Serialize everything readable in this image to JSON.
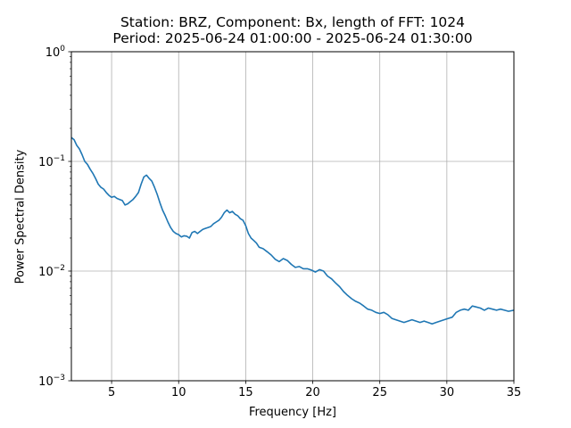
{
  "title_line1": "Station: BRZ, Component: Bx, length of FFT: 1024",
  "title_line2": "Period: 2025-06-24 01:00:00 - 2025-06-24 01:30:00",
  "chart_data": {
    "type": "line",
    "title": "Station: BRZ, Component: Bx, length of FFT: 1024\nPeriod: 2025-06-24 01:00:00 - 2025-06-24 01:30:00",
    "xlabel": "Frequency [Hz]",
    "ylabel": "Power Spectral Density",
    "xlim": [
      2,
      35
    ],
    "ylim": [
      0.001,
      1
    ],
    "yscale": "log",
    "grid": true,
    "line_color": "#1f77b4",
    "xticks": [
      5,
      10,
      15,
      20,
      25,
      30,
      35
    ],
    "yticks": [
      {
        "value": 0.001,
        "base": "10",
        "exp": "−3"
      },
      {
        "value": 0.01,
        "base": "10",
        "exp": "−2"
      },
      {
        "value": 0.1,
        "base": "10",
        "exp": "−1"
      },
      {
        "value": 1,
        "base": "10",
        "exp": "0"
      }
    ],
    "series": [
      {
        "x": [
          2.0,
          2.2,
          2.4,
          2.6,
          2.8,
          3.0,
          3.2,
          3.4,
          3.6,
          3.8,
          4.0,
          4.2,
          4.4,
          4.6,
          4.8,
          5.0,
          5.2,
          5.4,
          5.6,
          5.8,
          6.0,
          6.2,
          6.4,
          6.6,
          6.8,
          7.0,
          7.2,
          7.4,
          7.6,
          7.8,
          8.0,
          8.2,
          8.4,
          8.6,
          8.8,
          9.0,
          9.2,
          9.4,
          9.6,
          9.8,
          10.0,
          10.2,
          10.4,
          10.6,
          10.8,
          11.0,
          11.2,
          11.4,
          11.6,
          11.8,
          12.0,
          12.2,
          12.4,
          12.6,
          12.8,
          13.0,
          13.2,
          13.4,
          13.6,
          13.8,
          14.0,
          14.2,
          14.4,
          14.6,
          14.8,
          15.0,
          15.2,
          15.4,
          15.6,
          15.8,
          16.0,
          16.3,
          16.6,
          16.9,
          17.2,
          17.5,
          17.8,
          18.1,
          18.4,
          18.7,
          19.0,
          19.3,
          19.6,
          19.9,
          20.2,
          20.5,
          20.8,
          21.1,
          21.4,
          21.7,
          22.0,
          22.3,
          22.6,
          22.9,
          23.2,
          23.5,
          23.8,
          24.1,
          24.4,
          24.7,
          25.0,
          25.3,
          25.6,
          25.9,
          26.2,
          26.5,
          26.8,
          27.1,
          27.4,
          27.7,
          28.0,
          28.3,
          28.6,
          28.9,
          29.2,
          29.5,
          29.8,
          30.1,
          30.4,
          30.7,
          31.0,
          31.3,
          31.6,
          31.9,
          32.2,
          32.5,
          32.8,
          33.1,
          33.4,
          33.7,
          34.0,
          34.3,
          34.6,
          35.0
        ],
        "y": [
          0.165,
          0.158,
          0.14,
          0.13,
          0.115,
          0.1,
          0.094,
          0.085,
          0.078,
          0.07,
          0.062,
          0.058,
          0.056,
          0.052,
          0.049,
          0.047,
          0.048,
          0.046,
          0.045,
          0.044,
          0.04,
          0.041,
          0.043,
          0.045,
          0.048,
          0.052,
          0.062,
          0.072,
          0.075,
          0.07,
          0.066,
          0.058,
          0.05,
          0.042,
          0.036,
          0.032,
          0.028,
          0.025,
          0.023,
          0.022,
          0.0215,
          0.0205,
          0.021,
          0.0208,
          0.02,
          0.0225,
          0.023,
          0.022,
          0.023,
          0.024,
          0.0245,
          0.025,
          0.0255,
          0.027,
          0.028,
          0.029,
          0.031,
          0.034,
          0.036,
          0.034,
          0.035,
          0.033,
          0.032,
          0.03,
          0.029,
          0.026,
          0.022,
          0.02,
          0.019,
          0.018,
          0.0165,
          0.016,
          0.015,
          0.014,
          0.0128,
          0.0122,
          0.013,
          0.0125,
          0.0115,
          0.0108,
          0.011,
          0.0105,
          0.0105,
          0.0102,
          0.0098,
          0.0103,
          0.01,
          0.009,
          0.0085,
          0.0078,
          0.0072,
          0.0065,
          0.006,
          0.0056,
          0.0053,
          0.0051,
          0.0048,
          0.0045,
          0.0044,
          0.0042,
          0.0041,
          0.0042,
          0.004,
          0.0037,
          0.0036,
          0.0035,
          0.0034,
          0.0035,
          0.0036,
          0.0035,
          0.0034,
          0.0035,
          0.0034,
          0.0033,
          0.0034,
          0.0035,
          0.0036,
          0.0037,
          0.0038,
          0.0042,
          0.0044,
          0.0045,
          0.0044,
          0.0048,
          0.0047,
          0.0046,
          0.0044,
          0.0046,
          0.0045,
          0.0044,
          0.0045,
          0.0044,
          0.0043,
          0.0044
        ]
      }
    ]
  }
}
